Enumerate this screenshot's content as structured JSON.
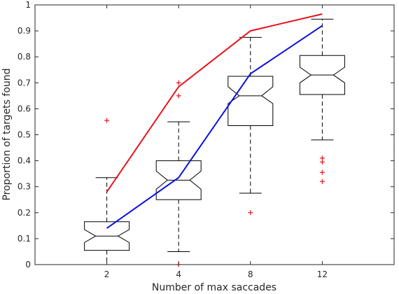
{
  "chart_data": {
    "type": "box",
    "title": "",
    "xlabel": "Number of max saccades",
    "ylabel": "Proportion of targets found",
    "ylim": [
      0,
      1
    ],
    "grid": false,
    "legend": "none",
    "categories": [
      "2",
      "4",
      "8",
      "12"
    ],
    "yticks": [
      "0",
      "0.1",
      "0.2",
      "0.3",
      "0.4",
      "0.5",
      "0.6",
      "0.7",
      "0.8",
      "0.9",
      "1"
    ],
    "boxes": [
      {
        "category": "2",
        "whisker_low": 0.0,
        "q1": 0.055,
        "notch_low": 0.085,
        "median": 0.11,
        "notch_high": 0.135,
        "q3": 0.165,
        "whisker_high": 0.335,
        "outliers": [
          0.555
        ]
      },
      {
        "category": "4",
        "whisker_low": 0.05,
        "q1": 0.25,
        "notch_low": 0.29,
        "median": 0.325,
        "notch_high": 0.36,
        "q3": 0.4,
        "whisker_high": 0.55,
        "outliers": [
          0.7,
          0.65,
          0.0
        ]
      },
      {
        "category": "8",
        "whisker_low": 0.275,
        "q1": 0.535,
        "notch_low": 0.62,
        "median": 0.65,
        "notch_high": 0.685,
        "q3": 0.725,
        "whisker_high": 0.875,
        "outliers": [
          0.2
        ]
      },
      {
        "category": "12",
        "whisker_low": 0.48,
        "q1": 0.655,
        "notch_low": 0.7,
        "median": 0.73,
        "notch_high": 0.76,
        "q3": 0.805,
        "whisker_high": 0.945,
        "outliers": [
          0.41,
          0.395,
          0.355,
          0.32
        ]
      }
    ],
    "series": [
      {
        "color": "#e8141b",
        "values": [
          0.28,
          0.685,
          0.9,
          0.965
        ]
      },
      {
        "color": "#0a10e0",
        "values": [
          0.14,
          0.335,
          0.735,
          0.92
        ]
      }
    ],
    "outlier_color": "#e8141b",
    "box_color": "#000000"
  }
}
